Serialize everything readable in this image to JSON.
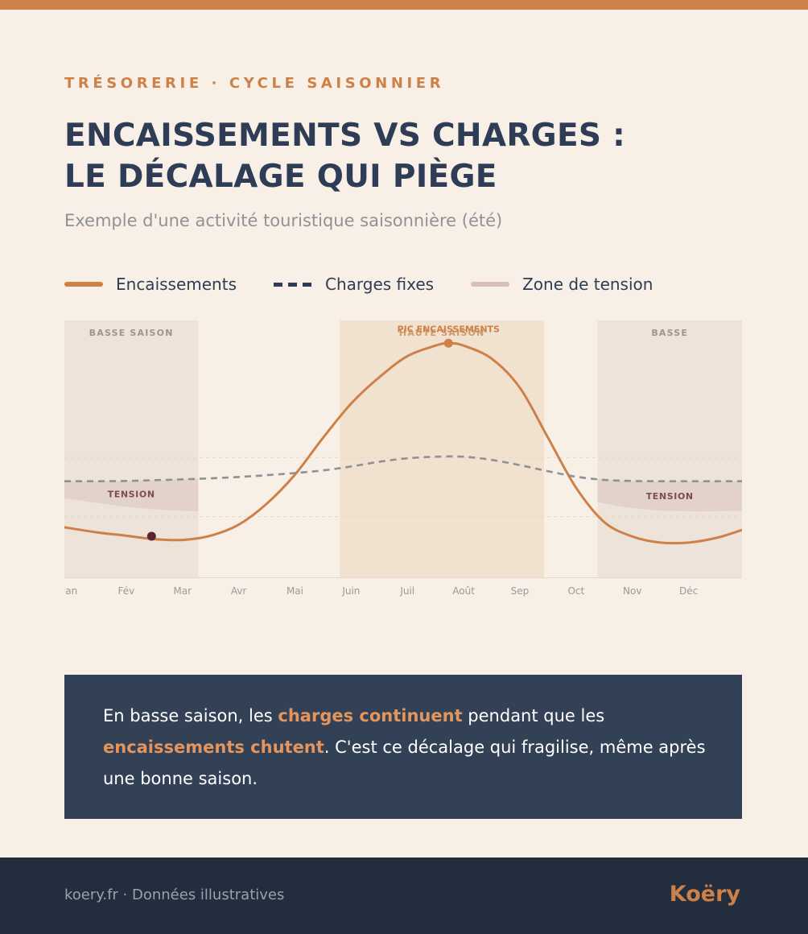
{
  "header": {
    "kicker": "TRÉSORERIE · CYCLE SAISONNIER",
    "title_line1": "Encaissements vs charges :",
    "title_line2": "le décalage qui piège",
    "subtitle": "Exemple d'une activité touristique saisonnière (été)"
  },
  "legend": {
    "items": [
      {
        "label": "Encaissements",
        "style": "solid",
        "color": "#cd8149"
      },
      {
        "label": "Charges fixes",
        "style": "dashed",
        "color": "#2e3d55"
      },
      {
        "label": "Zone de tension",
        "style": "band",
        "color": "#d9bfb8"
      }
    ]
  },
  "chart_data": {
    "type": "line",
    "xlabel": "",
    "ylabel": "",
    "x_range": [
      -0.1,
      11.95
    ],
    "y_range": [
      0,
      100
    ],
    "grid": "horizontal-dashed",
    "categories": [
      "Jan",
      "Fév",
      "Mar",
      "Avr",
      "Mai",
      "Juin",
      "Juil",
      "Août",
      "Sep",
      "Oct",
      "Nov",
      "Déc"
    ],
    "series": [
      {
        "name": "Encaissements",
        "style": "solid",
        "color": "#cd8149",
        "points": [
          [
            -0.1,
            19
          ],
          [
            0.5,
            17
          ],
          [
            1.0,
            15.8
          ],
          [
            1.5,
            14.5
          ],
          [
            2.0,
            14.2
          ],
          [
            2.5,
            15.8
          ],
          [
            3.0,
            20
          ],
          [
            3.5,
            28
          ],
          [
            4.0,
            39
          ],
          [
            4.5,
            53
          ],
          [
            5.0,
            66
          ],
          [
            5.5,
            76
          ],
          [
            6.0,
            84
          ],
          [
            6.5,
            88
          ],
          [
            6.73,
            88.9
          ],
          [
            7.0,
            88
          ],
          [
            7.5,
            83
          ],
          [
            8.0,
            72
          ],
          [
            8.5,
            53
          ],
          [
            9.0,
            34
          ],
          [
            9.5,
            21
          ],
          [
            10.0,
            15.5
          ],
          [
            10.5,
            13.2
          ],
          [
            11.0,
            13.2
          ],
          [
            11.5,
            15
          ],
          [
            11.95,
            18
          ]
        ]
      },
      {
        "name": "Charges fixes",
        "style": "dashed",
        "color": "#8f9196",
        "points": [
          [
            -0.1,
            36.5
          ],
          [
            0.5,
            36.5
          ],
          [
            1.0,
            36.6
          ],
          [
            1.5,
            36.9
          ],
          [
            2.0,
            37.2
          ],
          [
            2.5,
            37.6
          ],
          [
            3.0,
            38.1
          ],
          [
            3.5,
            38.8
          ],
          [
            4.0,
            39.6
          ],
          [
            4.5,
            40.6
          ],
          [
            5.0,
            42.1
          ],
          [
            5.5,
            43.9
          ],
          [
            6.0,
            45.2
          ],
          [
            6.5,
            45.8
          ],
          [
            7.0,
            45.8
          ],
          [
            7.5,
            44.6
          ],
          [
            8.0,
            42.6
          ],
          [
            8.5,
            40.3
          ],
          [
            9.0,
            38.2
          ],
          [
            9.5,
            37.0
          ],
          [
            10.0,
            36.6
          ],
          [
            10.5,
            36.5
          ],
          [
            11.0,
            36.5
          ],
          [
            11.5,
            36.5
          ],
          [
            11.95,
            36.5
          ]
        ]
      }
    ],
    "bands": [
      {
        "label": "BASSE SAISON",
        "from": -0.1,
        "to": 2.28,
        "kind": "low"
      },
      {
        "label": "HAUTE SAISON",
        "from": 4.8,
        "to": 8.43,
        "kind": "high"
      },
      {
        "label": "BASSE",
        "from": 9.38,
        "to": 11.95,
        "kind": "low"
      }
    ],
    "tension_zones": [
      {
        "label": "TENSION",
        "from": -0.1,
        "to": 2.28,
        "bottom": [
          [
            -0.1,
            30
          ],
          [
            0.4,
            28.5
          ],
          [
            0.9,
            27
          ],
          [
            1.5,
            25.8
          ],
          [
            2.28,
            25
          ]
        ]
      },
      {
        "label": "TENSION",
        "from": 9.38,
        "to": 11.95,
        "bottom": [
          [
            9.38,
            28.5
          ],
          [
            9.9,
            26.5
          ],
          [
            10.5,
            25.3
          ],
          [
            11.2,
            25
          ],
          [
            11.95,
            25.3
          ]
        ]
      }
    ],
    "annotations": [
      {
        "label": "PIC ENCAISSEMENTS",
        "x": 6.73,
        "y": 88.9,
        "color": "#cd8149"
      },
      {
        "label": "",
        "x": 1.45,
        "y": 15.6,
        "color": "#5c2430"
      }
    ],
    "gridlines": [
      45.5,
      23
    ]
  },
  "callout": {
    "part1": "En basse saison, les ",
    "highlight1": "charges continuent",
    "part2": " pendant que les ",
    "highlight2": "encaissements chutent",
    "part3": ". C'est ce décalage qui fragilise, même après une bonne saison."
  },
  "footer": {
    "source": "koery.fr · Données illustratives",
    "logo": "Koëry"
  }
}
